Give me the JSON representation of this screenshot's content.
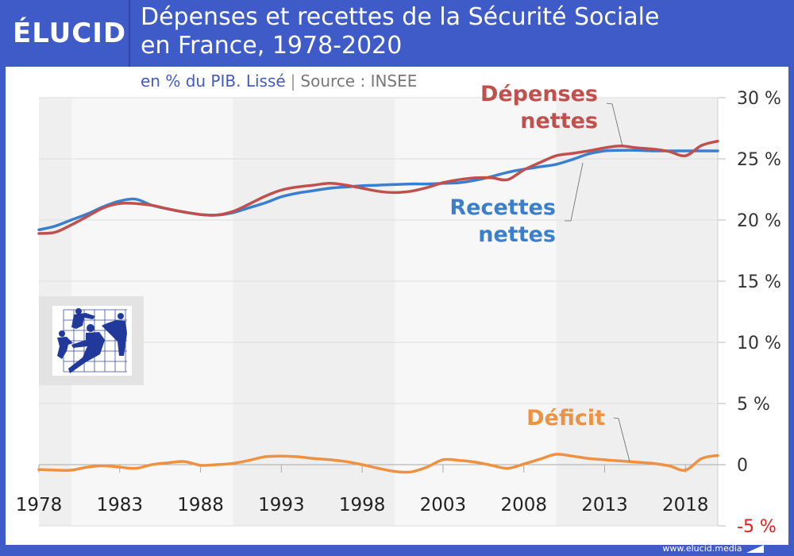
{
  "brand": {
    "logo_text": "ÉLUCID"
  },
  "header": {
    "title_line1": "Dépenses et recettes de la Sécurité Sociale",
    "title_line2": "en France, 1978-2020"
  },
  "subtitle": {
    "main": "en % du PIB. Lissé",
    "separator": "|",
    "source": "Source : INSEE"
  },
  "footer": {
    "url": "www.elucid.media"
  },
  "colors": {
    "brand_blue": "#3f5bc8",
    "depenses": "#c0504d",
    "recettes": "#3a7fcf",
    "deficit": "#ee9140",
    "negative_tick": "#e02020"
  },
  "logo_image": {
    "icon": "securite-sociale-logo-icon",
    "description": "Blue silhouettes of family figures on a grid"
  },
  "chart_data": {
    "type": "line",
    "title": "Dépenses et recettes de la Sécurité Sociale en France, 1978-2020",
    "subtitle": "en % du PIB. Lissé | Source : INSEE",
    "xlabel": "",
    "ylabel": "",
    "x": [
      1978,
      1979,
      1980,
      1981,
      1982,
      1983,
      1984,
      1985,
      1986,
      1987,
      1988,
      1989,
      1990,
      1991,
      1992,
      1993,
      1994,
      1995,
      1996,
      1997,
      1998,
      1999,
      2000,
      2001,
      2002,
      2003,
      2004,
      2005,
      2006,
      2007,
      2008,
      2009,
      2010,
      2011,
      2012,
      2013,
      2014,
      2015,
      2016,
      2017,
      2018,
      2019,
      2020
    ],
    "xlim": [
      1978,
      2020
    ],
    "ylim": [
      -5,
      30
    ],
    "x_ticks": [
      "1978",
      "1983",
      "1988",
      "1993",
      "1998",
      "2003",
      "2008",
      "2013",
      "2018"
    ],
    "x_tick_values": [
      1978,
      1983,
      1988,
      1993,
      1998,
      2003,
      2008,
      2013,
      2018
    ],
    "y_ticks": [
      "30 %",
      "25 %",
      "20 %",
      "15 %",
      "10 %",
      "5 %",
      "0",
      "-5 %"
    ],
    "y_tick_values": [
      30,
      25,
      20,
      15,
      10,
      5,
      0,
      -5
    ],
    "grid": true,
    "shaded_bands": [
      [
        1978,
        1980
      ],
      [
        1990,
        2000
      ],
      [
        2010,
        2020
      ]
    ],
    "series": [
      {
        "name": "Dépenses nettes",
        "label_lines": [
          "Dépenses",
          "nettes"
        ],
        "color": "#c0504d",
        "values": [
          18.9,
          19.0,
          19.6,
          20.3,
          21.0,
          21.35,
          21.35,
          21.2,
          20.9,
          20.65,
          20.45,
          20.4,
          20.7,
          21.3,
          21.95,
          22.45,
          22.7,
          22.85,
          23.0,
          22.85,
          22.6,
          22.35,
          22.25,
          22.35,
          22.65,
          23.05,
          23.3,
          23.45,
          23.45,
          23.3,
          24.1,
          24.7,
          25.25,
          25.45,
          25.65,
          25.9,
          26.05,
          25.9,
          25.8,
          25.6,
          25.25,
          26.1,
          26.45
        ]
      },
      {
        "name": "Recettes nettes",
        "label_lines": [
          "Recettes",
          "nettes"
        ],
        "color": "#3a7fcf",
        "values": [
          19.2,
          19.5,
          20.0,
          20.5,
          21.1,
          21.55,
          21.7,
          21.2,
          20.9,
          20.65,
          20.45,
          20.4,
          20.6,
          21.0,
          21.4,
          21.9,
          22.2,
          22.4,
          22.6,
          22.7,
          22.8,
          22.85,
          22.9,
          22.95,
          22.95,
          23.0,
          23.05,
          23.25,
          23.55,
          23.9,
          24.15,
          24.35,
          24.55,
          24.95,
          25.4,
          25.65,
          25.7,
          25.7,
          25.65,
          25.65,
          25.65,
          25.65,
          25.65
        ]
      },
      {
        "name": "Déficit",
        "label_lines": [
          "Déficit"
        ],
        "color": "#ee9140",
        "values": [
          -0.4,
          -0.45,
          -0.45,
          -0.2,
          -0.1,
          -0.2,
          -0.3,
          0.0,
          0.15,
          0.25,
          -0.05,
          0.0,
          0.1,
          0.35,
          0.65,
          0.7,
          0.65,
          0.5,
          0.4,
          0.25,
          0.0,
          -0.3,
          -0.55,
          -0.6,
          -0.2,
          0.4,
          0.35,
          0.2,
          -0.05,
          -0.3,
          0.05,
          0.45,
          0.85,
          0.7,
          0.5,
          0.4,
          0.3,
          0.2,
          0.1,
          -0.1,
          -0.45,
          0.5,
          0.75
        ]
      }
    ]
  }
}
